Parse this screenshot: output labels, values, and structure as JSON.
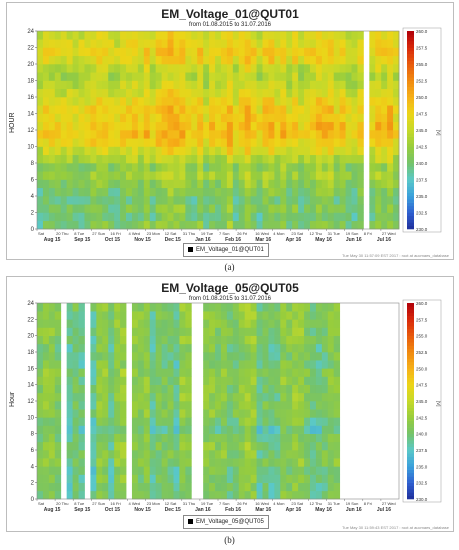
{
  "chart_data": [
    {
      "type": "heatmap",
      "title": "EM_Voltage_01@QUT01",
      "subtitle": "from 01.08.2015 to 31.07.2016",
      "ylabel": "HOUR",
      "xlabel": "",
      "ylim": [
        0,
        24
      ],
      "y_ticks": [
        0,
        2,
        4,
        6,
        8,
        10,
        12,
        14,
        16,
        18,
        20,
        22,
        24
      ],
      "x_day_labels": [
        "Sat",
        "20 Thu",
        "8 Tue",
        "27 Sun",
        "16 Fri",
        "4 Wed",
        "23 Mon",
        "12 Sat",
        "31 Thu",
        "19 Tue",
        "7 Sun",
        "26 Fri",
        "16 Wed",
        "4 Mon",
        "23 Sat",
        "12 Thu",
        "31 Tue",
        "19 Sun",
        "8 Fri",
        "27 Wed"
      ],
      "x_month_labels": [
        "Aug 15",
        "Sep 15",
        "Oct 15",
        "Nov 15",
        "Dec 15",
        "Jan 16",
        "Feb 16",
        "Mar 16",
        "Apr 16",
        "May 16",
        "Jun 16",
        "Jul 16"
      ],
      "color_scale": {
        "label": "[V]",
        "min": 230.0,
        "max": 260.0,
        "ticks": [
          "260.0",
          "257.5",
          "255.0",
          "252.5",
          "250.0",
          "247.5",
          "245.0",
          "242.5",
          "240.0",
          "237.5",
          "235.0",
          "232.5",
          "230.0"
        ]
      },
      "hourly_profile_V": [
        241,
        240,
        241,
        240,
        241,
        242,
        243,
        242,
        244,
        246,
        248,
        249,
        249,
        248,
        248,
        247,
        246,
        245,
        244,
        245,
        247,
        248,
        247,
        246
      ],
      "missing_date_ranges": [
        [
          "2015-08-20",
          "2015-08-22"
        ],
        [
          "2016-06-24",
          "2016-07-01"
        ]
      ],
      "legend": [
        "EM_Voltage_01@QUT01"
      ],
      "footer": "Tue May 30 11:57:09 EST 2017 : root at aucmaes_database"
    },
    {
      "type": "heatmap",
      "title": "EM_Voltage_05@QUT05",
      "subtitle": "from 01.08.2015 to 31.07.2016",
      "ylabel": "Hour",
      "xlabel": "",
      "ylim": [
        0,
        24
      ],
      "y_ticks": [
        0,
        2,
        4,
        6,
        8,
        10,
        12,
        14,
        16,
        18,
        20,
        22,
        24
      ],
      "x_day_labels": [
        "Sat",
        "20 Thu",
        "8 Tue",
        "27 Sun",
        "16 Fri",
        "4 Wed",
        "23 Mon",
        "12 Sat",
        "31 Thu",
        "19 Tue",
        "7 Sun",
        "26 Fri",
        "16 Wed",
        "4 Mon",
        "23 Sat",
        "12 Thu",
        "31 Tue",
        "19 Sun",
        "8 Fri",
        "27 Wed"
      ],
      "x_month_labels": [
        "Aug 15",
        "Sep 15",
        "Oct 15",
        "Nov 15",
        "Dec 15",
        "Jan 16",
        "Feb 16",
        "Mar 16",
        "Apr 16",
        "May 16",
        "Jun 16",
        "Jul 16"
      ],
      "color_scale": {
        "label": "[V]",
        "min": 230.0,
        "max": 260.0,
        "ticks": [
          "260.0",
          "257.5",
          "255.0",
          "252.5",
          "250.0",
          "247.5",
          "245.0",
          "242.5",
          "240.0",
          "237.5",
          "235.0",
          "232.5",
          "230.0"
        ]
      },
      "hourly_profile_V": [
        240,
        240,
        240,
        240,
        241,
        241,
        241,
        240,
        239,
        240,
        241,
        241,
        241,
        241,
        241,
        241,
        240,
        240,
        240,
        241,
        241,
        241,
        241,
        241
      ],
      "missing_date_ranges": [
        [
          "2015-08-20",
          "2015-08-26"
        ],
        [
          "2015-09-13",
          "2015-09-21"
        ],
        [
          "2015-10-26",
          "2015-10-30"
        ],
        [
          "2016-01-04",
          "2016-01-05"
        ],
        [
          "2016-01-10",
          "2016-01-12"
        ],
        [
          "2016-05-28",
          "2016-06-04"
        ],
        [
          "2016-06-05",
          "2016-07-31"
        ]
      ],
      "legend": [
        "EM_Voltage_05@QUT05"
      ],
      "footer": "Tue May 30 11:59:43 EST 2017 : root at aucmaes_database"
    }
  ],
  "captions": {
    "a": "(a)",
    "b": "(b)"
  }
}
